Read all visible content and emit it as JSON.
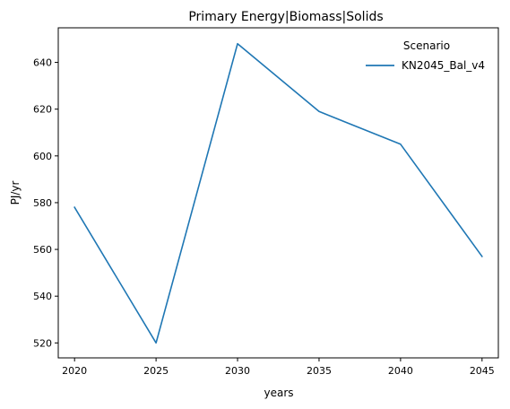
{
  "chart_data": {
    "type": "line",
    "title": "Primary Energy|Biomass|Solids",
    "xlabel": "years",
    "ylabel": "PJ/yr",
    "x": [
      2020,
      2025,
      2030,
      2035,
      2040,
      2045
    ],
    "xticks": [
      2020,
      2025,
      2030,
      2035,
      2040,
      2045
    ],
    "yticks": [
      520,
      540,
      560,
      580,
      600,
      620,
      640
    ],
    "xlim": [
      2019,
      2046
    ],
    "ylim": [
      513.6,
      654.8
    ],
    "grid": false,
    "legend": {
      "title": "Scenario",
      "placement": "top-right"
    },
    "series": [
      {
        "name": "KN2045_Bal_v4",
        "color": "#1f77b4",
        "values": [
          578,
          520,
          648,
          619,
          605,
          557
        ]
      }
    ]
  }
}
